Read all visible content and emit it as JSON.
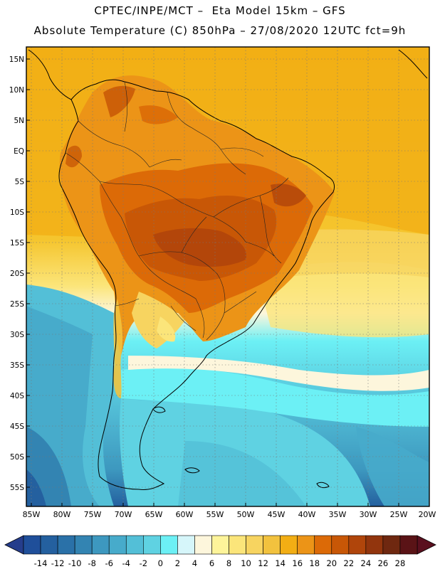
{
  "header": {
    "line1": "CPTEC/INPE/MCT –  Eta Model 15km – GFS",
    "line2": "Absolute Temperature (C) 850hPa – 27/08/2020 12UTC fct=9h"
  },
  "map": {
    "lat_labels": [
      "15N",
      "10N",
      "5N",
      "EQ",
      "5S",
      "10S",
      "15S",
      "20S",
      "25S",
      "30S",
      "35S",
      "40S",
      "45S",
      "50S",
      "55S"
    ],
    "lon_labels": [
      "85W",
      "80W",
      "75W",
      "70W",
      "65W",
      "60W",
      "55W",
      "50W",
      "45W",
      "40W",
      "35W",
      "30W",
      "25W",
      "20W"
    ]
  },
  "colorbar": {
    "ticks": [
      "-14",
      "-12",
      "-10",
      "-8",
      "-6",
      "-4",
      "-2",
      "0",
      "2",
      "4",
      "6",
      "8",
      "10",
      "12",
      "14",
      "16",
      "18",
      "20",
      "22",
      "24",
      "26",
      "28"
    ],
    "colors": [
      "#1f4f9a",
      "#24609f",
      "#2a71a8",
      "#3384b2",
      "#3d98bf",
      "#47abcb",
      "#53bfd7",
      "#5fd2e2",
      "#6cf0f5",
      "#d6f6fa",
      "#fdf6dc",
      "#fdf49a",
      "#fbe57a",
      "#f7d460",
      "#f2c23e",
      "#f2ae14",
      "#ec9417",
      "#dc6a07",
      "#c85706",
      "#b0450b",
      "#92350d",
      "#6f2810",
      "#5a1316"
    ],
    "under_color": "#253d8c",
    "over_color": "#5a0f1e"
  }
}
